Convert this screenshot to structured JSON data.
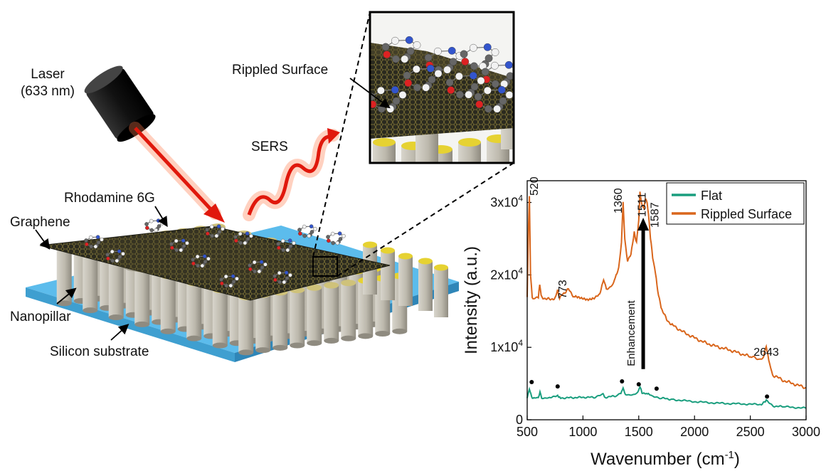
{
  "labels": {
    "laser": "Laser",
    "laser_wavelength": "(633 nm)",
    "sers": "SERS",
    "rippled_surface": "Rippled Surface",
    "rhodamine": "Rhodamine 6G",
    "graphene": "Graphene",
    "nanopillar": "Nanopillar",
    "silicon_substrate": "Silicon substrate"
  },
  "colors": {
    "flat": "#1a9e7e",
    "rippled": "#d9661c",
    "laser_beam": "#e0180c",
    "substrate": "#5cbcec",
    "pillar": "#bdb9ad",
    "pillar_cap": "#e6d232",
    "graphene": "#2a2a22"
  },
  "chart_data": {
    "type": "line",
    "xlabel": "Wavenumber (cm",
    "xlabel_sup": "-1",
    "xlabel_end": ")",
    "ylabel": "Intensity (a.u.)",
    "xlim": [
      500,
      3000
    ],
    "ylim": [
      0,
      33000
    ],
    "xticks": [
      500,
      1000,
      1500,
      2000,
      2500,
      3000
    ],
    "yticks": [
      {
        "value": 0,
        "label": "0"
      },
      {
        "value": 10000,
        "label": "1x10",
        "sup": "4"
      },
      {
        "value": 20000,
        "label": "2x10",
        "sup": "4"
      },
      {
        "value": 30000,
        "label": "3x10",
        "sup": "4"
      }
    ],
    "legend_position": "top-right",
    "series": [
      {
        "name": "Flat",
        "color": "#1a9e7e",
        "x": [
          500,
          520,
          540,
          560,
          600,
          615,
          630,
          700,
          773,
          800,
          900,
          1000,
          1100,
          1180,
          1200,
          1300,
          1340,
          1360,
          1380,
          1450,
          1490,
          1511,
          1530,
          1560,
          1587,
          1620,
          1700,
          1800,
          2000,
          2200,
          2400,
          2600,
          2643,
          2700,
          2800,
          3000
        ],
        "y": [
          3000,
          4300,
          3100,
          3000,
          3000,
          3800,
          3000,
          3000,
          3300,
          3000,
          3050,
          3100,
          3100,
          3500,
          3100,
          3300,
          3600,
          4400,
          3500,
          3400,
          3700,
          4600,
          3700,
          3600,
          3600,
          3200,
          3000,
          2800,
          2500,
          2300,
          2200,
          2100,
          2700,
          1900,
          1800,
          1600
        ]
      },
      {
        "name": "Rippled Surface",
        "color": "#d9661c",
        "x": [
          500,
          512,
          520,
          530,
          545,
          560,
          600,
          612,
          625,
          650,
          700,
          750,
          773,
          790,
          820,
          870,
          920,
          980,
          1040,
          1100,
          1150,
          1170,
          1185,
          1210,
          1250,
          1290,
          1320,
          1345,
          1360,
          1375,
          1400,
          1430,
          1460,
          1480,
          1500,
          1511,
          1525,
          1545,
          1560,
          1575,
          1587,
          1605,
          1625,
          1650,
          1670,
          1700,
          1750,
          1800,
          1900,
          2000,
          2100,
          2200,
          2300,
          2400,
          2500,
          2580,
          2620,
          2643,
          2665,
          2700,
          2800,
          2900,
          3000
        ],
        "y": [
          17000,
          27000,
          31000,
          20000,
          17000,
          16700,
          16800,
          18800,
          17000,
          16800,
          16600,
          16800,
          17800,
          16900,
          17400,
          18000,
          17000,
          16700,
          16600,
          16900,
          17200,
          18600,
          19500,
          18100,
          18400,
          19500,
          20800,
          24500,
          30000,
          24800,
          22000,
          22800,
          25800,
          24500,
          27500,
          31500,
          30000,
          29000,
          30500,
          29800,
          28500,
          25000,
          22500,
          20200,
          17800,
          15500,
          13800,
          13100,
          12100,
          11300,
          10600,
          10100,
          9700,
          9200,
          8700,
          8300,
          8800,
          10000,
          8200,
          6200,
          5400,
          4900,
          4400
        ]
      }
    ],
    "peak_labels": [
      {
        "x": 520,
        "label": "520"
      },
      {
        "x": 773,
        "label": "773"
      },
      {
        "x": 1360,
        "label": "1360"
      },
      {
        "x": 1511,
        "label": "1511"
      },
      {
        "x": 1587,
        "label": "1587"
      },
      {
        "x": 2643,
        "label": "2643"
      }
    ],
    "peak_markers": [
      {
        "x": 540,
        "y": 5200
      },
      {
        "x": 773,
        "y": 4600
      },
      {
        "x": 1350,
        "y": 5300
      },
      {
        "x": 1500,
        "y": 4900
      },
      {
        "x": 1660,
        "y": 4300
      },
      {
        "x": 2650,
        "y": 3200
      }
    ],
    "annotation": {
      "text": "Enhancement",
      "x": 1540,
      "y_from": 7000,
      "y_to": 27500
    }
  }
}
